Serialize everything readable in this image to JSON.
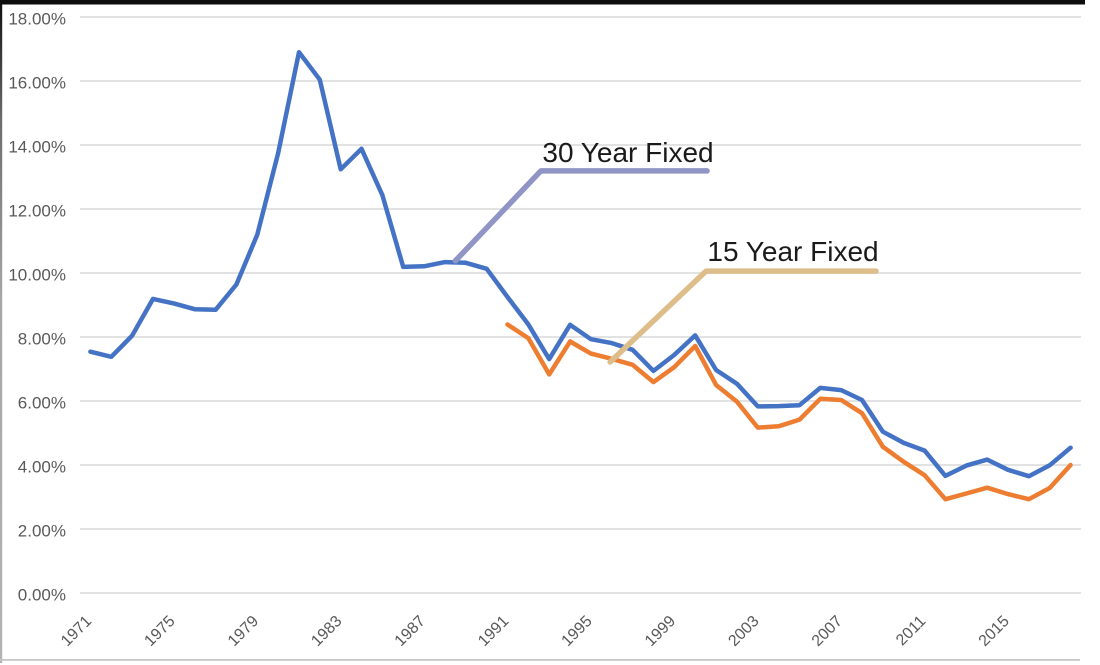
{
  "chart_data": {
    "type": "line",
    "title": "",
    "years": [
      1971,
      1972,
      1973,
      1974,
      1975,
      1976,
      1977,
      1978,
      1979,
      1980,
      1981,
      1982,
      1983,
      1984,
      1985,
      1986,
      1987,
      1988,
      1989,
      1990,
      1991,
      1992,
      1993,
      1994,
      1995,
      1996,
      1997,
      1998,
      1999,
      2000,
      2001,
      2002,
      2003,
      2004,
      2005,
      2006,
      2007,
      2008,
      2009,
      2010,
      2011,
      2012,
      2013,
      2014,
      2015,
      2016,
      2017,
      2018
    ],
    "series": [
      {
        "name": "30 Year Fixed",
        "color": "#4472c4",
        "values": [
          7.54,
          7.38,
          8.04,
          9.19,
          9.05,
          8.87,
          8.85,
          9.64,
          11.2,
          13.74,
          16.9,
          16.04,
          13.24,
          13.88,
          12.43,
          10.19,
          10.21,
          10.34,
          10.32,
          10.13,
          9.25,
          8.39,
          7.31,
          8.38,
          7.93,
          7.81,
          7.6,
          6.94,
          7.44,
          8.05,
          6.97,
          6.54,
          5.83,
          5.84,
          5.87,
          6.41,
          6.34,
          6.03,
          5.04,
          4.69,
          4.45,
          3.66,
          3.98,
          4.17,
          3.85,
          3.65,
          3.99,
          4.54
        ]
      },
      {
        "name": "15 Year Fixed",
        "color": "#ed7d31",
        "values": [
          null,
          null,
          null,
          null,
          null,
          null,
          null,
          null,
          null,
          null,
          null,
          null,
          null,
          null,
          null,
          null,
          null,
          null,
          null,
          null,
          8.39,
          7.96,
          6.83,
          7.86,
          7.48,
          7.32,
          7.13,
          6.59,
          7.06,
          7.72,
          6.5,
          5.98,
          5.17,
          5.21,
          5.42,
          6.07,
          6.03,
          5.62,
          4.57,
          4.1,
          3.68,
          2.93,
          3.11,
          3.29,
          3.09,
          2.93,
          3.28,
          4.0
        ]
      }
    ],
    "ylim": [
      0,
      18
    ],
    "ytick_step": 2,
    "ytick_labels": [
      "0.00%",
      "2.00%",
      "4.00%",
      "6.00%",
      "8.00%",
      "10.00%",
      "12.00%",
      "14.00%",
      "16.00%",
      "18.00%"
    ],
    "xtick_years": [
      1971,
      1975,
      1979,
      1983,
      1987,
      1991,
      1995,
      1999,
      2003,
      2007,
      2011,
      2015
    ],
    "grid": "horizontal",
    "legend_position": "none",
    "annotations": [
      {
        "label": "30 Year Fixed",
        "line_color": "#9095c5",
        "text_color": "#1a1a1a",
        "line_points_year_pct": [
          [
            1988.5,
            10.38
          ],
          [
            1992.6,
            13.19
          ],
          [
            2000.57,
            13.19
          ]
        ],
        "label_at_year_pct": [
          1996.78,
          13.47
        ]
      },
      {
        "label": "15 Year Fixed",
        "line_color": "#ddbe8a",
        "text_color": "#1a1a1a",
        "line_points_year_pct": [
          [
            1995.92,
            7.22
          ],
          [
            2000.52,
            10.06
          ],
          [
            2008.67,
            10.06
          ]
        ],
        "label_at_year_pct": [
          2004.69,
          10.38
        ]
      }
    ],
    "colors": {
      "background": "#ffffff",
      "gridline": "#d9d9d9",
      "axis_text": "#595959",
      "border_top": "#0d0d0d",
      "border_left": "#8a8a8a",
      "border_bottom": "#c6c6c6"
    }
  }
}
